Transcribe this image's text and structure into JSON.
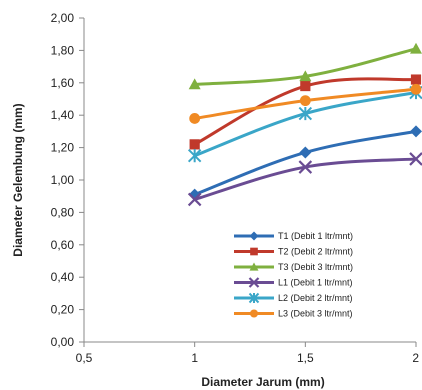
{
  "chart_data": {
    "type": "line",
    "xlabel": "Diameter Jarum (mm)",
    "ylabel": "Diameter Gelembung (mm)",
    "xlim": [
      0.5,
      2
    ],
    "ylim": [
      0,
      2
    ],
    "x_ticks": [
      "0,5",
      "1",
      "1,5",
      "2"
    ],
    "y_ticks": [
      "0,00",
      "0,20",
      "0,40",
      "0,60",
      "0,80",
      "1,00",
      "1,20",
      "1,40",
      "1,60",
      "1,80",
      "2,00"
    ],
    "x": [
      1,
      1.5,
      2
    ],
    "grid": false,
    "legend_position": "lower-right",
    "series": [
      {
        "name": "T1 (Debit 1 ltr/mnt)",
        "values": [
          0.91,
          1.17,
          1.3
        ],
        "color": "#2E6DB4",
        "marker": "diamond"
      },
      {
        "name": "T2 (Debit 2 ltr/mnt)",
        "values": [
          1.22,
          1.58,
          1.62
        ],
        "color": "#C0392B",
        "marker": "square"
      },
      {
        "name": "T3 (Debit 3 ltr/mnt)",
        "values": [
          1.59,
          1.64,
          1.81
        ],
        "color": "#7FB03F",
        "marker": "triangle"
      },
      {
        "name": "L1 (Debit 1 ltr/mnt)",
        "values": [
          0.88,
          1.08,
          1.13
        ],
        "color": "#6A4C93",
        "marker": "x"
      },
      {
        "name": "L2 (Debit 2 ltr/mnt)",
        "values": [
          1.15,
          1.41,
          1.54
        ],
        "color": "#3AA6C8",
        "marker": "star"
      },
      {
        "name": "L3 (Debit 3 ltr/mnt)",
        "values": [
          1.38,
          1.49,
          1.56
        ],
        "color": "#F08A24",
        "marker": "circle"
      }
    ]
  }
}
